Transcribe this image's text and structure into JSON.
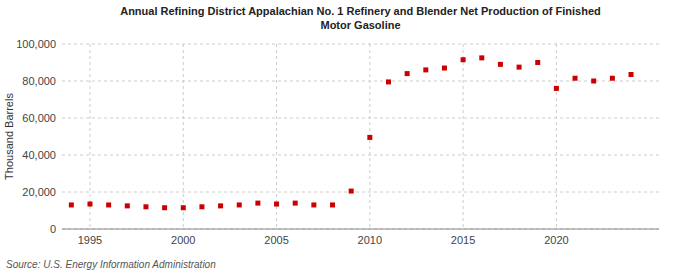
{
  "chart_data": {
    "type": "scatter",
    "title": "Annual Refining District Appalachian No. 1 Refinery and Blender Net Production of Finished\nMotor Gasoline",
    "ylabel": "Thousand Barrels",
    "annotations": [
      "Source: U.S. Energy Information Administration"
    ],
    "x": [
      1994,
      1995,
      1996,
      1997,
      1998,
      1999,
      2000,
      2001,
      2002,
      2003,
      2004,
      2005,
      2006,
      2007,
      2008,
      2009,
      2010,
      2011,
      2012,
      2013,
      2014,
      2015,
      2016,
      2017,
      2018,
      2019,
      2020,
      2021,
      2022,
      2023,
      2024
    ],
    "values": [
      13000,
      13500,
      13000,
      12500,
      12000,
      11500,
      11500,
      12000,
      12500,
      13000,
      14000,
      13500,
      14000,
      13000,
      13000,
      20500,
      49500,
      79500,
      84000,
      86000,
      87000,
      91500,
      92500,
      89000,
      87500,
      90000,
      76000,
      81500,
      80000,
      81500,
      83500
    ],
    "color": "#cc0000",
    "marker": "square",
    "xlim": [
      1993.5,
      2025.5
    ],
    "xticks": [
      1995,
      2000,
      2005,
      2010,
      2015,
      2020
    ],
    "ylim": [
      0,
      100000
    ],
    "yticks": [
      0,
      {
        "value": 20000,
        "label": "20,000"
      },
      {
        "value": 40000,
        "label": "40,000"
      },
      {
        "value": 60000,
        "label": "60,000"
      },
      {
        "value": 80000,
        "label": "80,000"
      },
      {
        "value": 100000,
        "label": "100,000"
      }
    ],
    "grid": true
  }
}
